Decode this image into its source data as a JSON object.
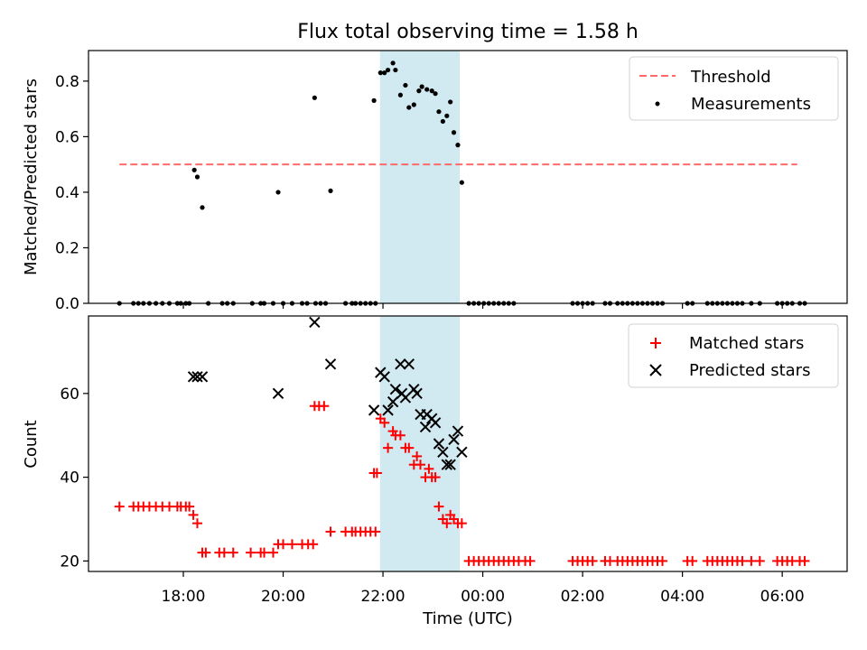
{
  "chart_data": {
    "title": "Flux total observing time = 1.58 h",
    "xlabel": "Time (UTC)",
    "x_tick_labels": [
      "18:00",
      "20:00",
      "22:00",
      "00:00",
      "02:00",
      "04:00",
      "06:00"
    ],
    "x_ticks_hours": [
      18,
      20,
      22,
      24,
      26,
      28,
      30
    ],
    "x_range_hours": [
      16.1,
      31.3
    ],
    "observing_window_hours": [
      21.95,
      23.53
    ],
    "colors": {
      "threshold": "#ff6b6b",
      "measurements": "#000000",
      "matched": "#ff0000",
      "predicted": "#000000",
      "window": "#add8e6"
    },
    "panels": [
      {
        "type": "scatter",
        "ylabel": "Matched/Predicted stars",
        "ylim": [
          0,
          0.91
        ],
        "yticks": [
          0.0,
          0.2,
          0.4,
          0.6,
          0.8
        ],
        "ytick_labels": [
          "0.0",
          "0.2",
          "0.4",
          "0.6",
          "0.8"
        ],
        "legend": [
          "Threshold",
          "Measurements"
        ],
        "legend_position": "top-right",
        "threshold": {
          "value": 0.5,
          "x_start": 16.72,
          "x_end": 30.3
        },
        "measurements": [
          [
            16.72,
            0
          ],
          [
            17.0,
            0
          ],
          [
            17.1,
            0
          ],
          [
            17.2,
            0
          ],
          [
            17.32,
            0
          ],
          [
            17.45,
            0
          ],
          [
            17.58,
            0
          ],
          [
            17.72,
            0
          ],
          [
            17.88,
            0
          ],
          [
            17.95,
            0
          ],
          [
            18.05,
            0
          ],
          [
            18.12,
            0
          ],
          [
            18.22,
            0.48
          ],
          [
            18.28,
            0.455
          ],
          [
            18.38,
            0.345
          ],
          [
            18.5,
            0
          ],
          [
            18.78,
            0
          ],
          [
            18.88,
            0
          ],
          [
            19.0,
            0
          ],
          [
            19.38,
            0
          ],
          [
            19.55,
            0
          ],
          [
            19.62,
            0
          ],
          [
            19.8,
            0
          ],
          [
            19.9,
            0.4
          ],
          [
            20.0,
            0
          ],
          [
            20.18,
            0
          ],
          [
            20.38,
            0
          ],
          [
            20.48,
            0
          ],
          [
            20.63,
            0.74
          ],
          [
            20.65,
            0
          ],
          [
            20.75,
            0
          ],
          [
            20.85,
            0
          ],
          [
            20.95,
            0.405
          ],
          [
            21.25,
            0
          ],
          [
            21.38,
            0
          ],
          [
            21.45,
            0
          ],
          [
            21.55,
            0
          ],
          [
            21.65,
            0
          ],
          [
            21.75,
            0
          ],
          [
            21.85,
            0
          ],
          [
            21.82,
            0.73
          ],
          [
            21.95,
            0.83
          ],
          [
            22.03,
            0.83
          ],
          [
            22.1,
            0.84
          ],
          [
            22.2,
            0.865
          ],
          [
            22.25,
            0.84
          ],
          [
            22.35,
            0.75
          ],
          [
            22.45,
            0.785
          ],
          [
            22.52,
            0.705
          ],
          [
            22.62,
            0.715
          ],
          [
            22.72,
            0.765
          ],
          [
            22.78,
            0.78
          ],
          [
            22.88,
            0.77
          ],
          [
            22.98,
            0.765
          ],
          [
            23.05,
            0.755
          ],
          [
            23.12,
            0.69
          ],
          [
            23.2,
            0.655
          ],
          [
            23.28,
            0.675
          ],
          [
            23.35,
            0.725
          ],
          [
            23.42,
            0.615
          ],
          [
            23.5,
            0.57
          ],
          [
            23.58,
            0.435
          ],
          [
            23.72,
            0
          ],
          [
            23.82,
            0
          ],
          [
            23.92,
            0
          ],
          [
            24.02,
            0
          ],
          [
            24.12,
            0
          ],
          [
            24.22,
            0
          ],
          [
            24.32,
            0
          ],
          [
            24.42,
            0
          ],
          [
            24.52,
            0
          ],
          [
            24.62,
            0
          ],
          [
            25.8,
            0
          ],
          [
            25.9,
            0
          ],
          [
            26.0,
            0
          ],
          [
            26.1,
            0
          ],
          [
            26.2,
            0
          ],
          [
            26.45,
            0
          ],
          [
            26.55,
            0
          ],
          [
            26.7,
            0
          ],
          [
            26.8,
            0
          ],
          [
            26.9,
            0
          ],
          [
            27.0,
            0
          ],
          [
            27.1,
            0
          ],
          [
            27.2,
            0
          ],
          [
            27.3,
            0
          ],
          [
            27.4,
            0
          ],
          [
            27.5,
            0
          ],
          [
            27.6,
            0
          ],
          [
            28.1,
            0
          ],
          [
            28.2,
            0
          ],
          [
            28.5,
            0
          ],
          [
            28.6,
            0
          ],
          [
            28.7,
            0
          ],
          [
            28.8,
            0
          ],
          [
            28.9,
            0
          ],
          [
            29.0,
            0
          ],
          [
            29.1,
            0
          ],
          [
            29.2,
            0
          ],
          [
            29.38,
            0
          ],
          [
            29.55,
            0
          ],
          [
            29.9,
            0
          ],
          [
            30.0,
            0
          ],
          [
            30.1,
            0
          ],
          [
            30.2,
            0
          ],
          [
            30.35,
            0
          ],
          [
            30.45,
            0
          ]
        ]
      },
      {
        "type": "scatter",
        "ylabel": "Count",
        "ylim": [
          17.5,
          78.5
        ],
        "yticks": [
          20,
          40,
          60
        ],
        "ytick_labels": [
          "20",
          "40",
          "60"
        ],
        "legend": [
          "Matched stars",
          "Predicted stars"
        ],
        "legend_position": "top-right",
        "matched": [
          [
            16.72,
            33
          ],
          [
            17.0,
            33
          ],
          [
            17.1,
            33
          ],
          [
            17.2,
            33
          ],
          [
            17.32,
            33
          ],
          [
            17.45,
            33
          ],
          [
            17.58,
            33
          ],
          [
            17.72,
            33
          ],
          [
            17.88,
            33
          ],
          [
            17.95,
            33
          ],
          [
            18.05,
            33
          ],
          [
            18.12,
            33
          ],
          [
            18.2,
            31
          ],
          [
            18.28,
            29
          ],
          [
            18.38,
            22
          ],
          [
            18.45,
            22
          ],
          [
            18.72,
            22
          ],
          [
            18.82,
            22
          ],
          [
            19.0,
            22
          ],
          [
            19.35,
            22
          ],
          [
            19.55,
            22
          ],
          [
            19.62,
            22
          ],
          [
            19.8,
            22
          ],
          [
            19.9,
            24
          ],
          [
            20.0,
            24
          ],
          [
            20.18,
            24
          ],
          [
            20.38,
            24
          ],
          [
            20.5,
            24
          ],
          [
            20.6,
            24
          ],
          [
            20.63,
            57
          ],
          [
            20.72,
            57
          ],
          [
            20.82,
            57
          ],
          [
            20.95,
            27
          ],
          [
            21.25,
            27
          ],
          [
            21.38,
            27
          ],
          [
            21.45,
            27
          ],
          [
            21.55,
            27
          ],
          [
            21.65,
            27
          ],
          [
            21.75,
            27
          ],
          [
            21.85,
            27
          ],
          [
            21.82,
            41
          ],
          [
            21.88,
            41
          ],
          [
            21.95,
            54
          ],
          [
            22.03,
            53
          ],
          [
            22.1,
            47
          ],
          [
            22.2,
            51
          ],
          [
            22.25,
            50
          ],
          [
            22.35,
            50
          ],
          [
            22.45,
            47
          ],
          [
            22.52,
            47
          ],
          [
            22.62,
            43
          ],
          [
            22.68,
            45
          ],
          [
            22.75,
            43
          ],
          [
            22.85,
            40
          ],
          [
            22.92,
            42
          ],
          [
            22.98,
            40
          ],
          [
            23.05,
            40
          ],
          [
            23.12,
            33
          ],
          [
            23.2,
            30
          ],
          [
            23.28,
            29
          ],
          [
            23.35,
            31
          ],
          [
            23.42,
            30
          ],
          [
            23.5,
            29
          ],
          [
            23.58,
            29
          ],
          [
            23.72,
            20
          ],
          [
            23.82,
            20
          ],
          [
            23.92,
            20
          ],
          [
            24.02,
            20
          ],
          [
            24.12,
            20
          ],
          [
            24.22,
            20
          ],
          [
            24.32,
            20
          ],
          [
            24.42,
            20
          ],
          [
            24.52,
            20
          ],
          [
            24.62,
            20
          ],
          [
            24.72,
            20
          ],
          [
            24.85,
            20
          ],
          [
            24.95,
            20
          ],
          [
            25.8,
            20
          ],
          [
            25.9,
            20
          ],
          [
            26.0,
            20
          ],
          [
            26.1,
            20
          ],
          [
            26.2,
            20
          ],
          [
            26.45,
            20
          ],
          [
            26.55,
            20
          ],
          [
            26.7,
            20
          ],
          [
            26.8,
            20
          ],
          [
            26.9,
            20
          ],
          [
            27.0,
            20
          ],
          [
            27.1,
            20
          ],
          [
            27.2,
            20
          ],
          [
            27.3,
            20
          ],
          [
            27.4,
            20
          ],
          [
            27.5,
            20
          ],
          [
            27.6,
            20
          ],
          [
            28.1,
            20
          ],
          [
            28.2,
            20
          ],
          [
            28.5,
            20
          ],
          [
            28.6,
            20
          ],
          [
            28.7,
            20
          ],
          [
            28.8,
            20
          ],
          [
            28.9,
            20
          ],
          [
            29.0,
            20
          ],
          [
            29.1,
            20
          ],
          [
            29.2,
            20
          ],
          [
            29.38,
            20
          ],
          [
            29.55,
            20
          ],
          [
            29.9,
            20
          ],
          [
            30.0,
            20
          ],
          [
            30.1,
            20
          ],
          [
            30.2,
            20
          ],
          [
            30.35,
            20
          ],
          [
            30.45,
            20
          ]
        ],
        "predicted": [
          [
            18.2,
            64
          ],
          [
            18.28,
            64
          ],
          [
            18.38,
            64
          ],
          [
            19.9,
            60
          ],
          [
            20.63,
            77
          ],
          [
            20.95,
            67
          ],
          [
            21.82,
            56
          ],
          [
            21.95,
            65
          ],
          [
            22.03,
            64
          ],
          [
            22.1,
            56
          ],
          [
            22.2,
            58
          ],
          [
            22.25,
            61
          ],
          [
            22.35,
            67
          ],
          [
            22.38,
            60
          ],
          [
            22.45,
            59
          ],
          [
            22.52,
            67
          ],
          [
            22.62,
            61
          ],
          [
            22.68,
            60
          ],
          [
            22.75,
            55
          ],
          [
            22.85,
            52
          ],
          [
            22.88,
            55
          ],
          [
            22.98,
            54
          ],
          [
            23.05,
            53
          ],
          [
            23.12,
            48
          ],
          [
            23.2,
            46
          ],
          [
            23.28,
            43
          ],
          [
            23.35,
            43
          ],
          [
            23.42,
            49
          ],
          [
            23.5,
            51
          ],
          [
            23.58,
            46
          ]
        ]
      }
    ]
  }
}
